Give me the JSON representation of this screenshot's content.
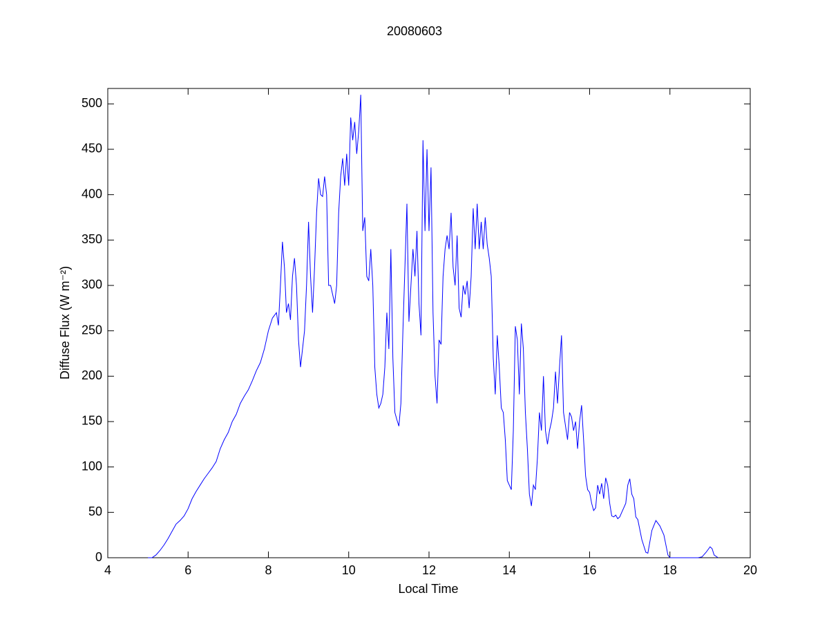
{
  "chart_data": {
    "type": "line",
    "title": "20080603",
    "x_label": "Local Time",
    "y_label": "Diffuse Flux (W m⁻²)",
    "x": [
      5.0,
      5.1,
      5.2,
      5.3,
      5.4,
      5.5,
      5.6,
      5.7,
      5.8,
      5.9,
      6.0,
      6.1,
      6.2,
      6.3,
      6.4,
      6.5,
      6.6,
      6.7,
      6.8,
      6.9,
      7.0,
      7.1,
      7.2,
      7.3,
      7.4,
      7.5,
      7.6,
      7.7,
      7.8,
      7.9,
      8.0,
      8.1,
      8.2,
      8.25,
      8.3,
      8.35,
      8.4,
      8.45,
      8.5,
      8.55,
      8.6,
      8.65,
      8.7,
      8.75,
      8.8,
      8.85,
      8.9,
      8.95,
      9.0,
      9.05,
      9.1,
      9.15,
      9.2,
      9.25,
      9.3,
      9.35,
      9.4,
      9.45,
      9.5,
      9.55,
      9.6,
      9.65,
      9.7,
      9.75,
      9.8,
      9.85,
      9.9,
      9.95,
      10.0,
      10.05,
      10.1,
      10.15,
      10.2,
      10.25,
      10.3,
      10.35,
      10.4,
      10.45,
      10.5,
      10.55,
      10.6,
      10.65,
      10.7,
      10.75,
      10.8,
      10.85,
      10.9,
      10.95,
      11.0,
      11.05,
      11.1,
      11.15,
      11.2,
      11.25,
      11.3,
      11.35,
      11.4,
      11.45,
      11.5,
      11.55,
      11.6,
      11.65,
      11.7,
      11.75,
      11.8,
      11.85,
      11.9,
      11.95,
      12.0,
      12.05,
      12.1,
      12.15,
      12.2,
      12.25,
      12.3,
      12.35,
      12.4,
      12.45,
      12.5,
      12.55,
      12.6,
      12.65,
      12.7,
      12.75,
      12.8,
      12.85,
      12.9,
      12.95,
      13.0,
      13.05,
      13.1,
      13.15,
      13.2,
      13.25,
      13.3,
      13.35,
      13.4,
      13.45,
      13.5,
      13.55,
      13.6,
      13.65,
      13.7,
      13.75,
      13.8,
      13.85,
      13.9,
      13.95,
      14.0,
      14.05,
      14.1,
      14.15,
      14.2,
      14.25,
      14.3,
      14.35,
      14.4,
      14.45,
      14.5,
      14.55,
      14.6,
      14.65,
      14.7,
      14.75,
      14.8,
      14.85,
      14.9,
      14.95,
      15.0,
      15.05,
      15.1,
      15.15,
      15.2,
      15.25,
      15.3,
      15.35,
      15.4,
      15.45,
      15.5,
      15.55,
      15.6,
      15.65,
      15.7,
      15.75,
      15.8,
      15.85,
      15.9,
      15.95,
      16.0,
      16.05,
      16.1,
      16.15,
      16.2,
      16.25,
      16.3,
      16.35,
      16.4,
      16.45,
      16.5,
      16.55,
      16.6,
      16.65,
      16.7,
      16.75,
      16.8,
      16.85,
      16.9,
      16.95,
      17.0,
      17.05,
      17.1,
      17.15,
      17.2,
      17.3,
      17.4,
      17.45,
      17.55,
      17.65,
      17.75,
      17.85,
      17.95,
      18.0,
      18.7,
      18.8,
      18.9,
      19.0,
      19.05,
      19.1,
      19.2
    ],
    "values": [
      0,
      0,
      3,
      8,
      14,
      21,
      29,
      37,
      41,
      46,
      54,
      65,
      73,
      80,
      87,
      93,
      99,
      106,
      120,
      130,
      138,
      150,
      158,
      170,
      178,
      185,
      195,
      206,
      215,
      230,
      250,
      264,
      270,
      256,
      300,
      348,
      320,
      270,
      280,
      262,
      310,
      330,
      300,
      240,
      210,
      230,
      250,
      300,
      370,
      310,
      270,
      320,
      380,
      418,
      400,
      398,
      420,
      400,
      300,
      300,
      290,
      280,
      300,
      380,
      420,
      440,
      410,
      445,
      410,
      485,
      460,
      480,
      445,
      470,
      510,
      360,
      375,
      310,
      305,
      340,
      300,
      210,
      180,
      165,
      170,
      180,
      210,
      270,
      230,
      340,
      220,
      160,
      152,
      145,
      170,
      250,
      320,
      390,
      260,
      300,
      340,
      310,
      360,
      280,
      245,
      460,
      360,
      450,
      360,
      430,
      270,
      200,
      170,
      240,
      235,
      310,
      340,
      355,
      340,
      380,
      320,
      300,
      355,
      275,
      265,
      300,
      290,
      305,
      275,
      310,
      385,
      340,
      390,
      340,
      370,
      340,
      375,
      345,
      330,
      310,
      220,
      180,
      245,
      210,
      165,
      160,
      130,
      85,
      80,
      75,
      140,
      255,
      240,
      180,
      258,
      230,
      160,
      120,
      70,
      57,
      80,
      75,
      110,
      160,
      140,
      200,
      140,
      125,
      140,
      150,
      165,
      205,
      170,
      210,
      245,
      160,
      145,
      130,
      160,
      155,
      140,
      150,
      120,
      150,
      168,
      130,
      90,
      75,
      72,
      60,
      52,
      55,
      80,
      70,
      82,
      65,
      88,
      80,
      60,
      46,
      45,
      47,
      43,
      45,
      50,
      55,
      60,
      80,
      87,
      70,
      65,
      45,
      42,
      20,
      6,
      5,
      30,
      41,
      35,
      25,
      3,
      0,
      0,
      1,
      6,
      12,
      10,
      3,
      0
    ],
    "color": "#0000ff",
    "xlim": [
      4,
      20
    ],
    "ylim": [
      0,
      517
    ],
    "xticks": [
      4,
      6,
      8,
      10,
      12,
      14,
      16,
      18,
      20
    ],
    "yticks": [
      0,
      50,
      100,
      150,
      200,
      250,
      300,
      350,
      400,
      450,
      500
    ]
  }
}
